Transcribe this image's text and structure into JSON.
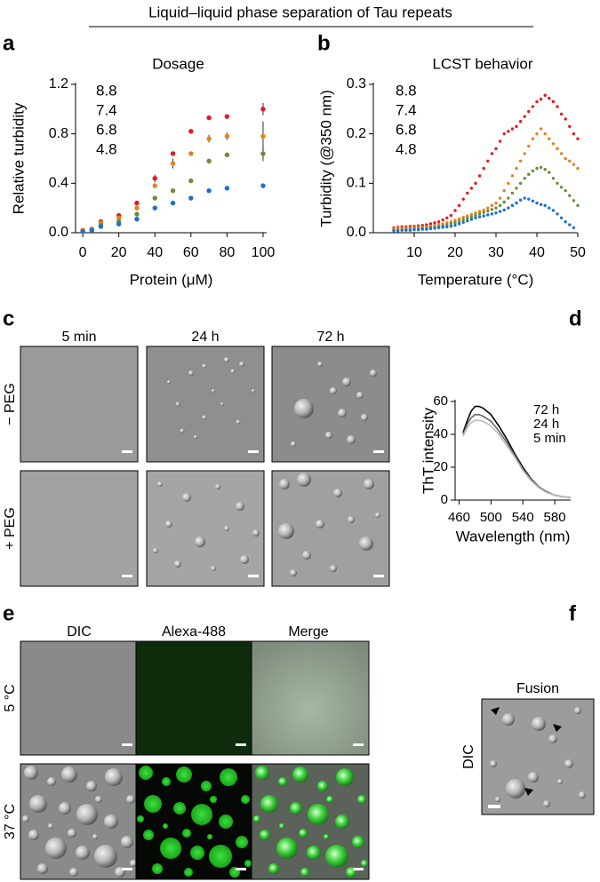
{
  "title": "Liquid–liquid phase separation of Tau repeats",
  "panel_labels": [
    "a",
    "b",
    "c",
    "d",
    "e",
    "f"
  ],
  "chart_data": [
    {
      "type": "scatter",
      "title": "Dosage",
      "x_label": "Protein (μM)",
      "y_label": "Relative turbidity",
      "legend": "upper left",
      "x": [
        0,
        5,
        10,
        20,
        30,
        40,
        50,
        60,
        70,
        80,
        100
      ],
      "xlim": [
        -4,
        102
      ],
      "xticks": [
        0,
        20,
        40,
        60,
        80,
        100
      ],
      "ylim": [
        0,
        1.2
      ],
      "yticks": [
        {
          "value": 0,
          "label": "0.0"
        },
        {
          "value": 0.4,
          "label": "0.4"
        },
        {
          "value": 0.8,
          "label": "0.8"
        },
        {
          "value": 1.2,
          "label": "1.2"
        }
      ],
      "series": [
        {
          "name": "8.8",
          "color": "#e41a1c",
          "values": [
            0.02,
            0.03,
            0.09,
            0.14,
            0.24,
            0.44,
            0.64,
            0.82,
            0.93,
            0.94,
            1.0
          ],
          "errors": [
            0.005,
            0.005,
            0.01,
            0.01,
            0.01,
            0.03,
            0.01,
            0.01,
            0.01,
            0.01,
            0.05
          ]
        },
        {
          "name": "7.4",
          "color": "#e8801e",
          "values": [
            0.02,
            0.03,
            0.08,
            0.12,
            0.2,
            0.38,
            0.56,
            0.64,
            0.76,
            0.78,
            0.78
          ],
          "errors": [
            0.005,
            0.005,
            0.01,
            0.01,
            0.01,
            0.02,
            0.04,
            0.01,
            0.03,
            0.03,
            0.12
          ]
        },
        {
          "name": "6.8",
          "color": "#6a8e3a",
          "values": [
            0.01,
            0.02,
            0.06,
            0.09,
            0.15,
            0.28,
            0.34,
            0.42,
            0.58,
            0.63,
            0.64
          ],
          "errors": [
            0.005,
            0.005,
            0.01,
            0.01,
            0.01,
            0.01,
            0.01,
            0.01,
            0.02,
            0.01,
            0.06
          ]
        },
        {
          "name": "4.8",
          "color": "#1f6fd0",
          "values": [
            0.01,
            0.02,
            0.05,
            0.07,
            0.11,
            0.2,
            0.24,
            0.28,
            0.34,
            0.36,
            0.38
          ],
          "errors": [
            0.005,
            0.005,
            0.01,
            0.01,
            0.01,
            0.01,
            0.01,
            0.01,
            0.01,
            0.02,
            0.01
          ]
        }
      ]
    },
    {
      "type": "scatter",
      "title": "LCST behavior",
      "x_label": "Temperature (°C)",
      "y_label": "Turbidity (@350 nm)",
      "legend": "upper left",
      "x": [
        5,
        6,
        7,
        8,
        9,
        10,
        11,
        12,
        13,
        14,
        15,
        16,
        17,
        18,
        19,
        20,
        21,
        22,
        23,
        24,
        25,
        26,
        27,
        28,
        29,
        30,
        31,
        32,
        33,
        34,
        35,
        36,
        37,
        38,
        39,
        40,
        41,
        42,
        43,
        44,
        45,
        46,
        47,
        48,
        49,
        50
      ],
      "xlim": [
        0,
        50
      ],
      "xticks": [
        10,
        20,
        30,
        40,
        50
      ],
      "ylim": [
        0,
        0.3
      ],
      "yticks": [
        {
          "value": 0,
          "label": "0.0"
        },
        0.1,
        0.2,
        0.3
      ],
      "series": [
        {
          "name": "8.8",
          "color": "#e41a1c",
          "values": [
            0.01,
            0.011,
            0.012,
            0.012,
            0.013,
            0.013,
            0.014,
            0.015,
            0.016,
            0.018,
            0.02,
            0.022,
            0.026,
            0.03,
            0.035,
            0.045,
            0.055,
            0.068,
            0.08,
            0.09,
            0.1,
            0.115,
            0.13,
            0.145,
            0.16,
            0.17,
            0.185,
            0.2,
            0.205,
            0.21,
            0.215,
            0.225,
            0.235,
            0.245,
            0.255,
            0.265,
            0.27,
            0.278,
            0.272,
            0.265,
            0.255,
            0.24,
            0.23,
            0.215,
            0.2,
            0.19
          ]
        },
        {
          "name": "7.4",
          "color": "#e8801e",
          "values": [
            0.008,
            0.009,
            0.009,
            0.01,
            0.01,
            0.01,
            0.011,
            0.011,
            0.012,
            0.013,
            0.014,
            0.016,
            0.018,
            0.02,
            0.022,
            0.025,
            0.028,
            0.031,
            0.034,
            0.037,
            0.04,
            0.043,
            0.046,
            0.05,
            0.055,
            0.06,
            0.07,
            0.085,
            0.1,
            0.115,
            0.13,
            0.145,
            0.16,
            0.175,
            0.19,
            0.2,
            0.21,
            0.2,
            0.19,
            0.18,
            0.17,
            0.16,
            0.15,
            0.145,
            0.138,
            0.13
          ]
        },
        {
          "name": "6.8",
          "color": "#6a8e3a",
          "values": [
            0.005,
            0.006,
            0.006,
            0.007,
            0.007,
            0.008,
            0.008,
            0.009,
            0.009,
            0.01,
            0.011,
            0.012,
            0.014,
            0.016,
            0.018,
            0.02,
            0.023,
            0.026,
            0.029,
            0.032,
            0.035,
            0.038,
            0.041,
            0.044,
            0.047,
            0.05,
            0.055,
            0.062,
            0.07,
            0.08,
            0.09,
            0.1,
            0.11,
            0.118,
            0.125,
            0.13,
            0.132,
            0.128,
            0.122,
            0.11,
            0.1,
            0.092,
            0.085,
            0.075,
            0.065,
            0.055
          ]
        },
        {
          "name": "4.8",
          "color": "#1f6fd0",
          "values": [
            0.004,
            0.004,
            0.005,
            0.005,
            0.005,
            0.006,
            0.006,
            0.007,
            0.007,
            0.008,
            0.009,
            0.01,
            0.011,
            0.012,
            0.013,
            0.015,
            0.018,
            0.021,
            0.024,
            0.027,
            0.03,
            0.032,
            0.034,
            0.036,
            0.038,
            0.04,
            0.043,
            0.046,
            0.05,
            0.055,
            0.06,
            0.066,
            0.07,
            0.068,
            0.064,
            0.06,
            0.057,
            0.055,
            0.05,
            0.045,
            0.038,
            0.03,
            0.022,
            0.016,
            0.01,
            null
          ]
        }
      ]
    },
    {
      "type": "line",
      "x_label": "Wavelength (nm)",
      "y_label": "ThT intensity",
      "legend": "upper right",
      "x": [
        465,
        470,
        475,
        480,
        485,
        490,
        500,
        510,
        520,
        530,
        540,
        550,
        560,
        570,
        580,
        590,
        600
      ],
      "xlim": [
        455,
        600
      ],
      "xticks": [
        460,
        500,
        540,
        580
      ],
      "ylim": [
        0,
        60
      ],
      "yticks": [
        0,
        20,
        40,
        60
      ],
      "series": [
        {
          "name": "72 h",
          "color": "#000000",
          "values": [
            41,
            48,
            54,
            57,
            57,
            56,
            52,
            45,
            37,
            28,
            20,
            13,
            8,
            5,
            3,
            2,
            1.5
          ]
        },
        {
          "name": "24 h",
          "color": "#666666",
          "values": [
            40,
            46,
            50,
            52,
            52,
            51,
            48,
            42,
            35,
            27,
            19,
            12.5,
            8,
            5,
            3,
            2,
            1.5
          ]
        },
        {
          "name": "5 min",
          "color": "#bbbbbb",
          "values": [
            39,
            44,
            47,
            48.5,
            48.5,
            48,
            45,
            40,
            33,
            26,
            18,
            12,
            7.5,
            4.5,
            3,
            2,
            1.5
          ]
        }
      ]
    }
  ],
  "panel_c": {
    "columns": [
      "5 min",
      "24 h",
      "72 h"
    ],
    "rows": [
      "− PEG",
      "+ PEG"
    ]
  },
  "panel_e": {
    "columns": [
      "DIC",
      "Alexa-488",
      "Merge"
    ],
    "rows": [
      "5 °C",
      "37 °C"
    ]
  },
  "panel_f": {
    "title": "Fusion",
    "row": "DIC"
  }
}
